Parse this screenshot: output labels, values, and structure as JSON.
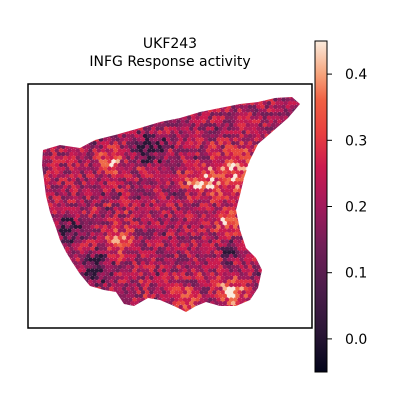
{
  "chart_data": {
    "type": "heatmap",
    "title": "UKF243",
    "subtitle": "INFG Response activity",
    "colormap": "rocket",
    "colorbar": {
      "range": [
        -0.05,
        0.45
      ],
      "ticks": [
        0.0,
        0.1,
        0.2,
        0.3,
        0.4
      ],
      "tick_labels": [
        "0.0",
        "0.1",
        "0.2",
        "0.3",
        "0.4"
      ]
    },
    "axes": {
      "visible_ticks": false,
      "frame": true,
      "grid": false
    }
  }
}
